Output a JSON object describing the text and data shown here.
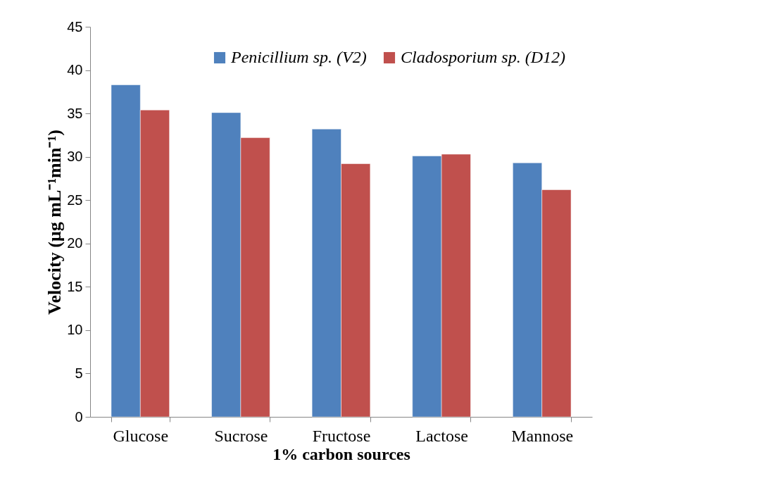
{
  "chart_data": {
    "type": "bar",
    "xlabel": "1% carbon sources",
    "ylabel": "Velocity  (µg mL⁻¹min⁻¹)",
    "categories": [
      "Glucose",
      "Sucrose",
      "Fructose",
      "Lactose",
      "Mannose"
    ],
    "series": [
      {
        "name": "Penicillium sp. (V2)",
        "color": "#4f81bd",
        "values": [
          38.3,
          35.1,
          33.2,
          30.1,
          29.3
        ]
      },
      {
        "name": "Cladosporium sp. (D12)",
        "color": "#c0504d",
        "values": [
          35.4,
          32.2,
          29.2,
          30.3,
          26.2
        ]
      }
    ],
    "ylim": [
      0,
      45
    ],
    "yticks": [
      0,
      5,
      10,
      15,
      20,
      25,
      30,
      35,
      40,
      45
    ],
    "grid": false,
    "legend": "top right"
  }
}
